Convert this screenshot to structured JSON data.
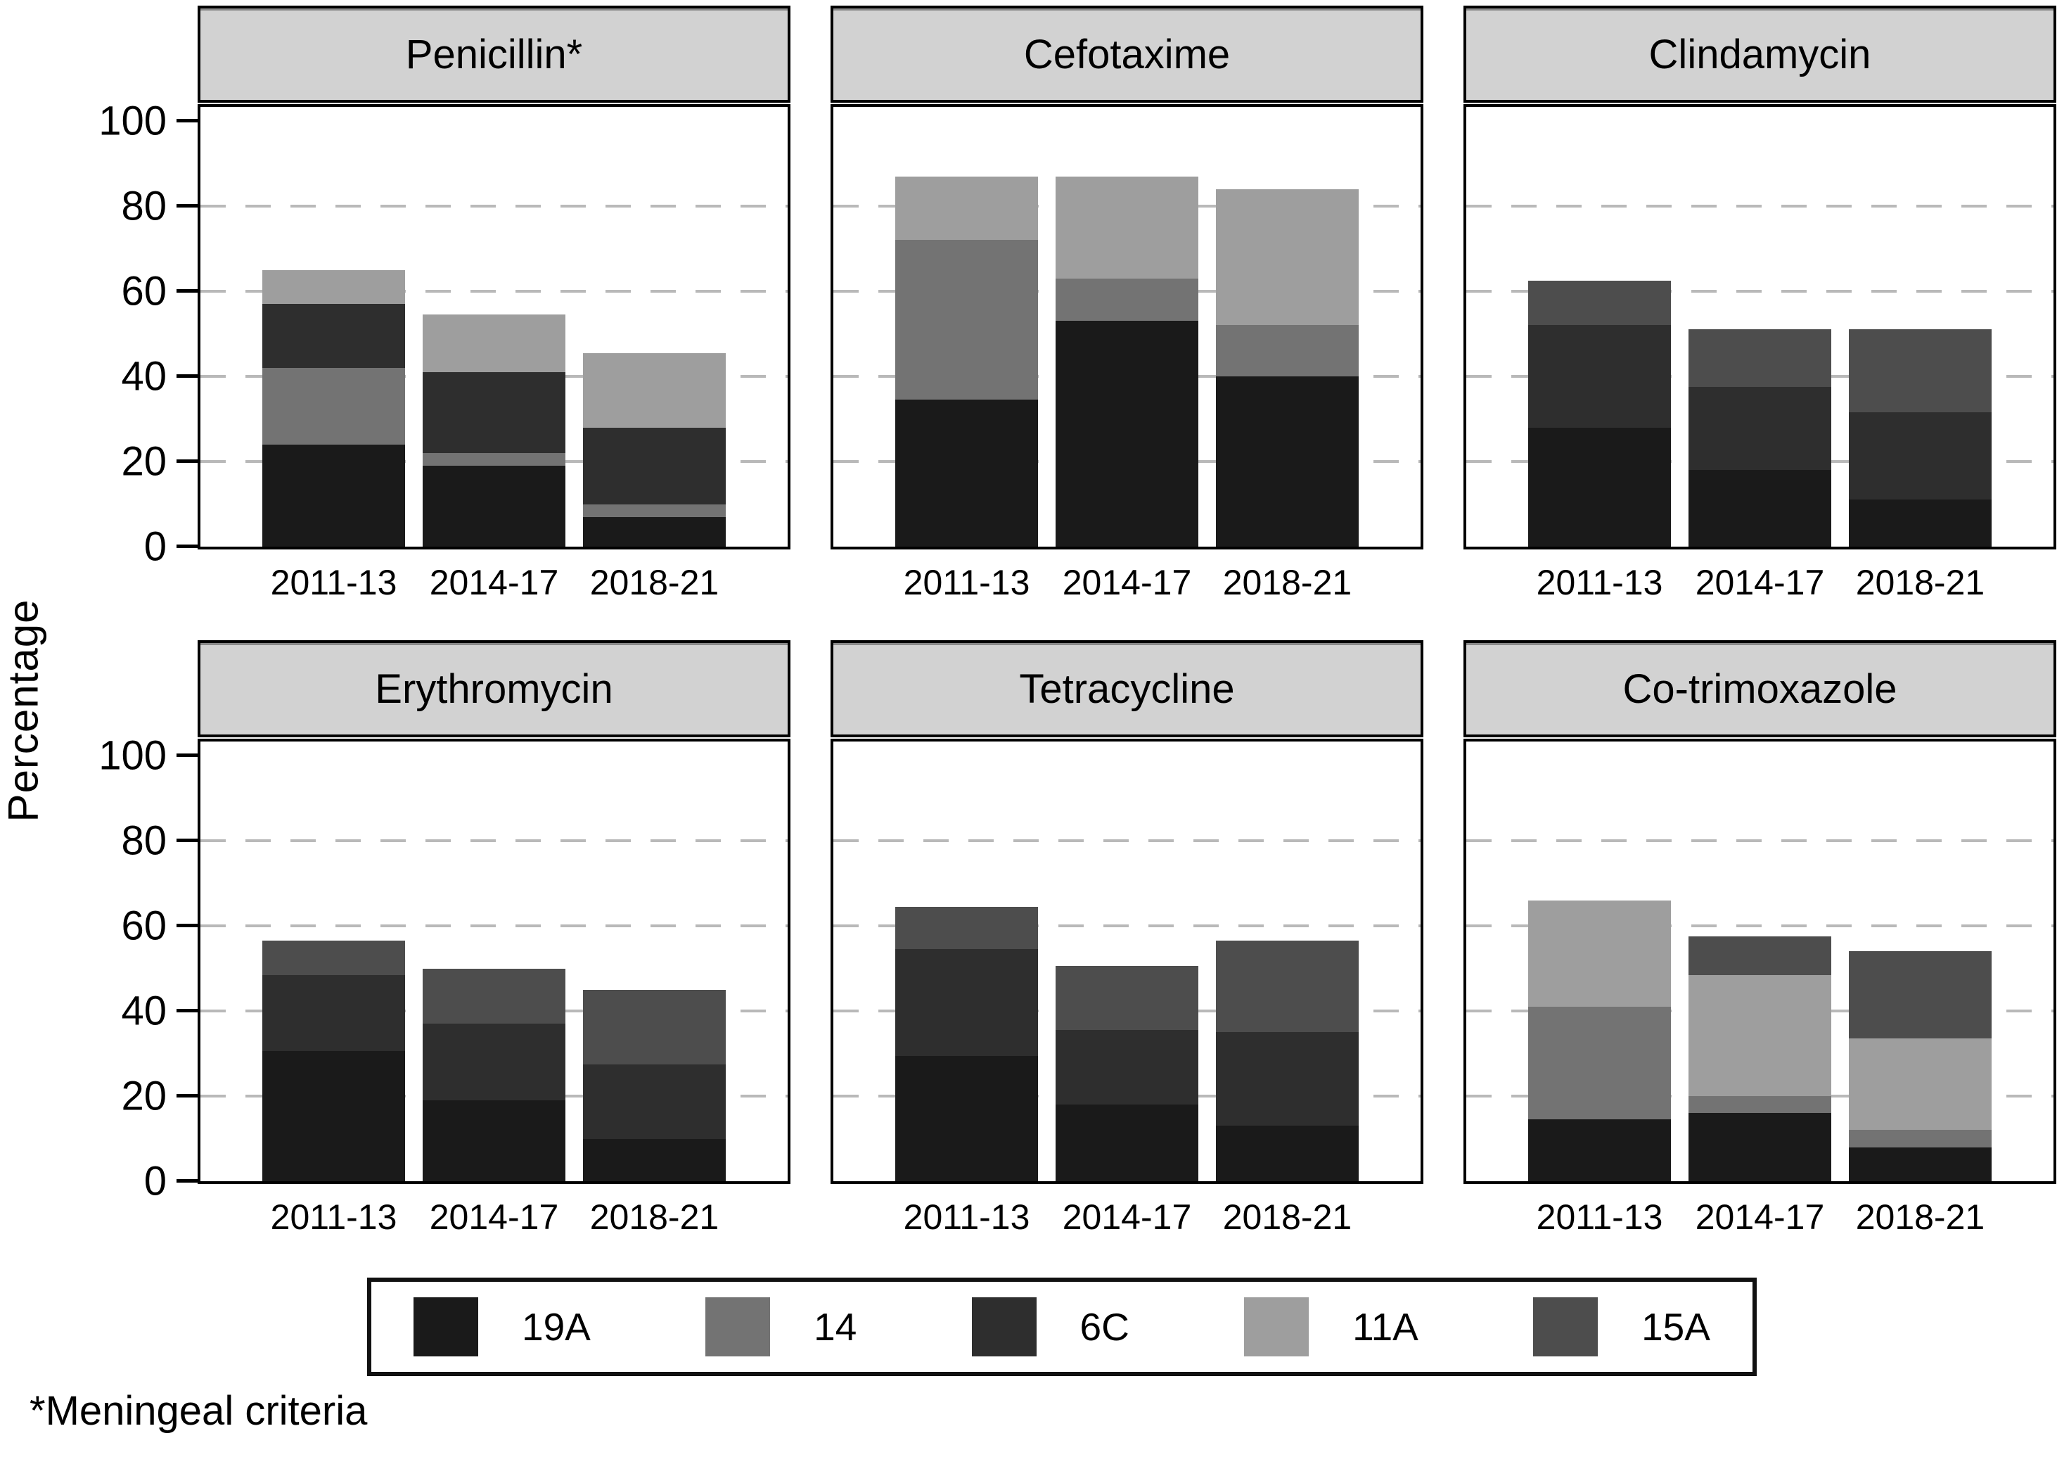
{
  "axis": {
    "ylabel": "Percentage",
    "tick_labels": [
      "0",
      "20",
      "40",
      "60",
      "80",
      "100"
    ],
    "tick_values": [
      0,
      20,
      40,
      60,
      80,
      100
    ],
    "gridline_values": [
      20,
      40,
      60,
      80
    ]
  },
  "footnote": "*Meningeal criteria",
  "legend": {
    "position": "bottom",
    "items": [
      {
        "label": "19A",
        "color": "#1a1a1a"
      },
      {
        "label": "14",
        "color": "#737373"
      },
      {
        "label": "6C",
        "color": "#2e2e2e"
      },
      {
        "label": "11A",
        "color": "#9e9e9e"
      },
      {
        "label": "15A",
        "color": "#4d4d4d"
      }
    ]
  },
  "chart_data": {
    "type": "bar",
    "subtype": "stacked",
    "categories": [
      "2011-13",
      "2014-17",
      "2018-21"
    ],
    "ylabel": "Percentage",
    "ylim": [
      0,
      110
    ],
    "grid": "dashed horizontal at 20/40/60/80",
    "series_order": [
      "19A",
      "14",
      "6C",
      "11A",
      "15A"
    ],
    "panels": [
      {
        "title": "Penicillin*",
        "show_y_axis": true,
        "series": [
          {
            "name": "19A",
            "values": [
              24,
              19,
              7
            ]
          },
          {
            "name": "14",
            "values": [
              18,
              3,
              3
            ]
          },
          {
            "name": "6C",
            "values": [
              15,
              19,
              18
            ]
          },
          {
            "name": "11A",
            "values": [
              8,
              13.5,
              17.5
            ]
          },
          {
            "name": "15A",
            "values": [
              0,
              0,
              0
            ]
          }
        ]
      },
      {
        "title": "Cefotaxime",
        "show_y_axis": false,
        "series": [
          {
            "name": "19A",
            "values": [
              34.5,
              53,
              40
            ]
          },
          {
            "name": "14",
            "values": [
              37.5,
              10,
              12
            ]
          },
          {
            "name": "6C",
            "values": [
              0,
              0,
              0
            ]
          },
          {
            "name": "11A",
            "values": [
              15,
              24,
              32
            ]
          },
          {
            "name": "15A",
            "values": [
              0,
              0,
              0
            ]
          }
        ]
      },
      {
        "title": "Clindamycin",
        "show_y_axis": false,
        "series": [
          {
            "name": "19A",
            "values": [
              28,
              18,
              11
            ]
          },
          {
            "name": "14",
            "values": [
              0,
              0,
              0
            ]
          },
          {
            "name": "6C",
            "values": [
              24,
              19.5,
              20.5
            ]
          },
          {
            "name": "11A",
            "values": [
              0,
              0,
              0
            ]
          },
          {
            "name": "15A",
            "values": [
              10.5,
              13.5,
              19.5
            ]
          }
        ]
      },
      {
        "title": "Erythromycin",
        "show_y_axis": true,
        "series": [
          {
            "name": "19A",
            "values": [
              30.5,
              19,
              10
            ]
          },
          {
            "name": "14",
            "values": [
              0,
              0,
              0
            ]
          },
          {
            "name": "6C",
            "values": [
              18,
              18,
              17.5
            ]
          },
          {
            "name": "11A",
            "values": [
              0,
              0,
              0
            ]
          },
          {
            "name": "15A",
            "values": [
              8,
              13,
              17.5
            ]
          }
        ]
      },
      {
        "title": "Tetracycline",
        "show_y_axis": false,
        "series": [
          {
            "name": "19A",
            "values": [
              29.5,
              18,
              13
            ]
          },
          {
            "name": "14",
            "values": [
              0,
              0,
              0
            ]
          },
          {
            "name": "6C",
            "values": [
              25,
              17.5,
              22
            ]
          },
          {
            "name": "11A",
            "values": [
              0,
              0,
              0
            ]
          },
          {
            "name": "15A",
            "values": [
              10,
              15,
              21.5
            ]
          }
        ]
      },
      {
        "title": "Co-trimoxazole",
        "show_y_axis": false,
        "series": [
          {
            "name": "19A",
            "values": [
              14.5,
              16,
              8
            ]
          },
          {
            "name": "14",
            "values": [
              26.5,
              4,
              4
            ]
          },
          {
            "name": "6C",
            "values": [
              0,
              0,
              0
            ]
          },
          {
            "name": "11A",
            "values": [
              25,
              28.5,
              21.5
            ]
          },
          {
            "name": "15A",
            "values": [
              0,
              9,
              20.5
            ]
          }
        ]
      }
    ]
  },
  "layout_note": "2 rows x 3 columns of panels"
}
